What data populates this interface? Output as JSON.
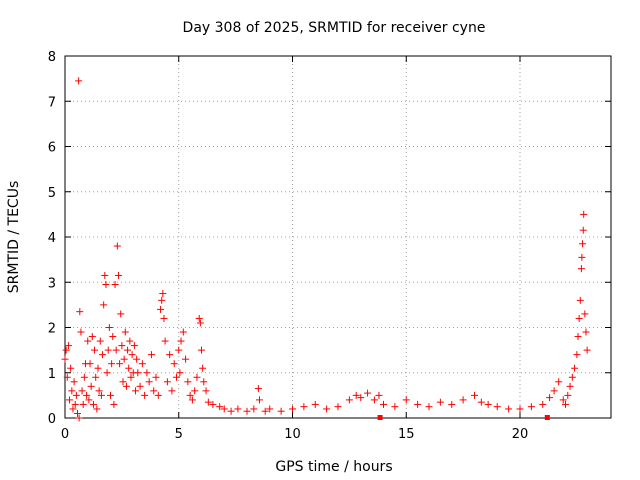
{
  "chart_data": {
    "type": "scatter",
    "title": "Day 308 of 2025, SRMTID for receiver cyne",
    "xlabel": "GPS time / hours",
    "ylabel": "SRMTID / TECUs",
    "xlim": [
      0,
      24
    ],
    "ylim": [
      0,
      8
    ],
    "xticks": [
      0,
      5,
      10,
      15,
      20
    ],
    "xtick_labels": [
      "0",
      "5",
      "10",
      "15",
      "20"
    ],
    "yticks": [
      0,
      1,
      2,
      3,
      4,
      5,
      6,
      7,
      8
    ],
    "ytick_labels": [
      "0",
      "1",
      "2",
      "3",
      "4",
      "5",
      "6",
      "7",
      "8"
    ],
    "grid": true,
    "marker": "plus",
    "color": "#ff0000",
    "series": [
      {
        "name": "SRMTID",
        "points": [
          [
            0.0,
            1.3
          ],
          [
            0.05,
            1.5
          ],
          [
            0.1,
            0.9
          ],
          [
            0.15,
            1.6
          ],
          [
            0.2,
            0.4
          ],
          [
            0.25,
            1.1
          ],
          [
            0.3,
            0.6
          ],
          [
            0.35,
            0.2
          ],
          [
            0.4,
            0.8
          ],
          [
            0.45,
            0.3
          ],
          [
            0.5,
            0.5
          ],
          [
            0.55,
            0.1
          ],
          [
            0.6,
            7.45
          ],
          [
            0.62,
            0.0
          ],
          [
            0.65,
            2.35
          ],
          [
            0.7,
            1.9
          ],
          [
            0.75,
            0.6
          ],
          [
            0.8,
            0.3
          ],
          [
            0.85,
            0.9
          ],
          [
            0.9,
            1.2
          ],
          [
            0.95,
            0.5
          ],
          [
            1.0,
            1.7
          ],
          [
            1.05,
            0.4
          ],
          [
            1.1,
            1.2
          ],
          [
            1.15,
            0.7
          ],
          [
            1.2,
            1.8
          ],
          [
            1.25,
            0.3
          ],
          [
            1.3,
            1.5
          ],
          [
            1.35,
            0.9
          ],
          [
            1.4,
            0.2
          ],
          [
            1.45,
            1.1
          ],
          [
            1.5,
            0.6
          ],
          [
            1.55,
            1.7
          ],
          [
            1.6,
            0.5
          ],
          [
            1.65,
            1.4
          ],
          [
            1.7,
            2.5
          ],
          [
            1.75,
            3.15
          ],
          [
            1.8,
            2.95
          ],
          [
            1.85,
            1.0
          ],
          [
            1.9,
            1.5
          ],
          [
            1.95,
            2.0
          ],
          [
            2.0,
            0.5
          ],
          [
            2.05,
            1.2
          ],
          [
            2.1,
            1.8
          ],
          [
            2.15,
            0.3
          ],
          [
            2.2,
            2.95
          ],
          [
            2.25,
            1.5
          ],
          [
            2.3,
            3.8
          ],
          [
            2.35,
            3.15
          ],
          [
            2.4,
            1.2
          ],
          [
            2.45,
            2.3
          ],
          [
            2.5,
            1.6
          ],
          [
            2.55,
            0.8
          ],
          [
            2.6,
            1.3
          ],
          [
            2.65,
            1.9
          ],
          [
            2.7,
            0.7
          ],
          [
            2.75,
            1.5
          ],
          [
            2.8,
            1.1
          ],
          [
            2.85,
            1.7
          ],
          [
            2.9,
            0.9
          ],
          [
            2.95,
            1.4
          ],
          [
            3.0,
            1.0
          ],
          [
            3.05,
            1.6
          ],
          [
            3.1,
            0.6
          ],
          [
            3.15,
            1.3
          ],
          [
            3.2,
            1.0
          ],
          [
            3.3,
            0.7
          ],
          [
            3.4,
            1.2
          ],
          [
            3.5,
            0.5
          ],
          [
            3.6,
            1.0
          ],
          [
            3.7,
            0.8
          ],
          [
            3.8,
            1.4
          ],
          [
            3.9,
            0.6
          ],
          [
            4.0,
            0.9
          ],
          [
            4.1,
            0.5
          ],
          [
            4.2,
            2.4
          ],
          [
            4.25,
            2.6
          ],
          [
            4.3,
            2.75
          ],
          [
            4.35,
            2.2
          ],
          [
            4.4,
            1.7
          ],
          [
            4.5,
            0.8
          ],
          [
            4.6,
            1.4
          ],
          [
            4.7,
            0.6
          ],
          [
            4.8,
            1.2
          ],
          [
            4.9,
            0.9
          ],
          [
            5.0,
            1.5
          ],
          [
            5.05,
            1.0
          ],
          [
            5.1,
            1.7
          ],
          [
            5.2,
            1.9
          ],
          [
            5.3,
            1.3
          ],
          [
            5.4,
            0.8
          ],
          [
            5.5,
            0.5
          ],
          [
            5.6,
            0.4
          ],
          [
            5.7,
            0.6
          ],
          [
            5.8,
            0.9
          ],
          [
            5.9,
            2.2
          ],
          [
            5.95,
            2.1
          ],
          [
            6.0,
            1.5
          ],
          [
            6.05,
            1.1
          ],
          [
            6.1,
            0.8
          ],
          [
            6.2,
            0.6
          ],
          [
            6.3,
            0.35
          ],
          [
            6.5,
            0.3
          ],
          [
            6.8,
            0.25
          ],
          [
            7.0,
            0.2
          ],
          [
            7.3,
            0.15
          ],
          [
            7.6,
            0.2
          ],
          [
            8.0,
            0.15
          ],
          [
            8.3,
            0.2
          ],
          [
            8.5,
            0.65
          ],
          [
            8.55,
            0.4
          ],
          [
            8.8,
            0.15
          ],
          [
            9.0,
            0.2
          ],
          [
            9.5,
            0.15
          ],
          [
            10.0,
            0.2
          ],
          [
            10.5,
            0.25
          ],
          [
            11.0,
            0.3
          ],
          [
            11.5,
            0.2
          ],
          [
            12.0,
            0.25
          ],
          [
            12.5,
            0.4
          ],
          [
            12.8,
            0.5
          ],
          [
            13.0,
            0.45
          ],
          [
            13.3,
            0.55
          ],
          [
            13.6,
            0.4
          ],
          [
            13.8,
            0.5
          ],
          [
            14.0,
            0.3
          ],
          [
            14.5,
            0.25
          ],
          [
            15.0,
            0.4
          ],
          [
            15.5,
            0.3
          ],
          [
            16.0,
            0.25
          ],
          [
            16.5,
            0.35
          ],
          [
            17.0,
            0.3
          ],
          [
            17.5,
            0.4
          ],
          [
            18.0,
            0.5
          ],
          [
            18.3,
            0.35
          ],
          [
            18.6,
            0.3
          ],
          [
            19.0,
            0.25
          ],
          [
            19.5,
            0.2
          ],
          [
            20.0,
            0.2
          ],
          [
            20.5,
            0.25
          ],
          [
            21.0,
            0.3
          ],
          [
            21.3,
            0.45
          ],
          [
            21.5,
            0.6
          ],
          [
            21.7,
            0.8
          ],
          [
            21.9,
            0.4
          ],
          [
            22.0,
            0.3
          ],
          [
            22.1,
            0.5
          ],
          [
            22.2,
            0.7
          ],
          [
            22.3,
            0.9
          ],
          [
            22.4,
            1.1
          ],
          [
            22.5,
            1.4
          ],
          [
            22.55,
            1.8
          ],
          [
            22.6,
            2.2
          ],
          [
            22.65,
            2.6
          ],
          [
            22.7,
            3.3
          ],
          [
            22.72,
            3.55
          ],
          [
            22.75,
            3.85
          ],
          [
            22.78,
            4.15
          ],
          [
            22.8,
            4.5
          ],
          [
            22.85,
            2.3
          ],
          [
            22.9,
            1.9
          ],
          [
            22.95,
            1.5
          ]
        ]
      }
    ],
    "axis_markers_x": [
      13.85,
      21.2
    ]
  }
}
